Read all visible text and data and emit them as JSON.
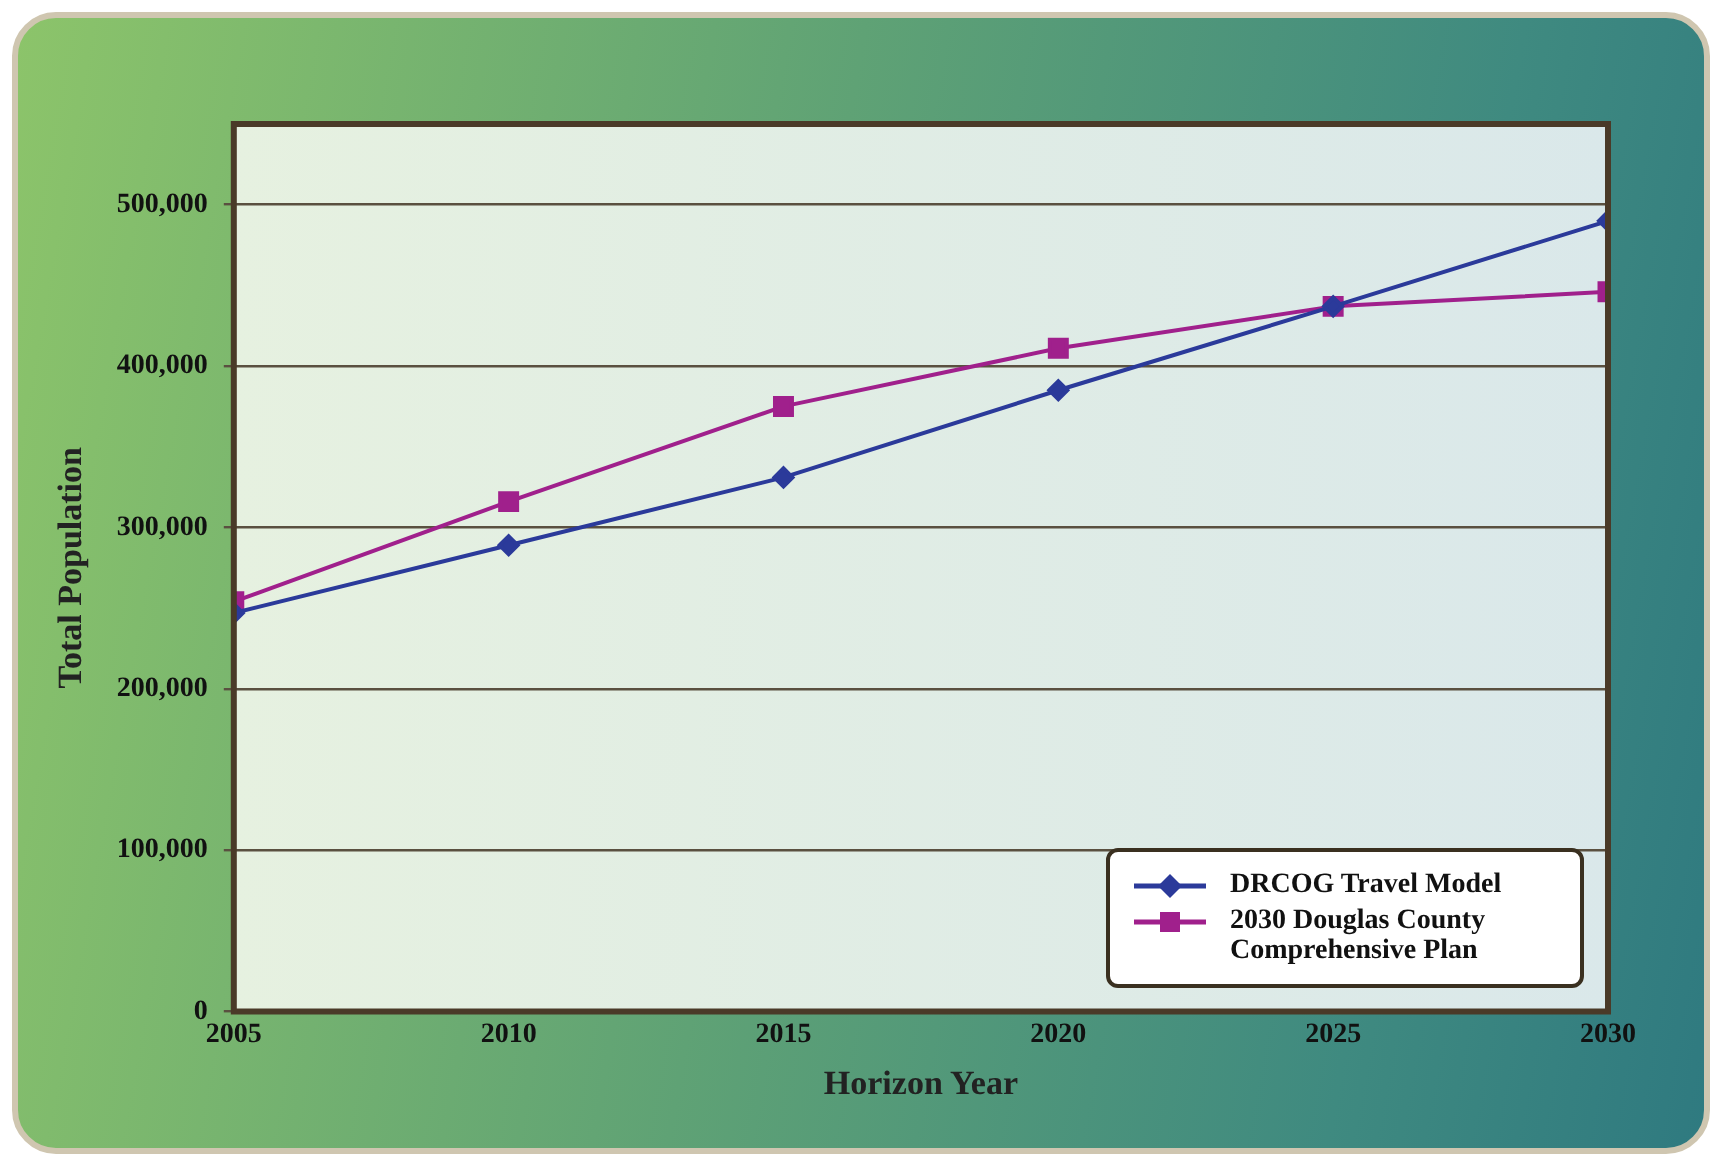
{
  "chart_data": {
    "type": "line",
    "xlabel": "Horizon Year",
    "ylabel": "Total Population",
    "x": [
      2005,
      2010,
      2015,
      2020,
      2025,
      2030
    ],
    "series": [
      {
        "name": "DRCOG Travel Model",
        "color": "#2b3a9a",
        "marker": "diamond",
        "values": [
          247000,
          289000,
          331000,
          385000,
          437000,
          490000
        ]
      },
      {
        "name": "2030 Douglas County Comprehensive Plan",
        "color": "#a0208c",
        "marker": "square",
        "values": [
          254000,
          316000,
          375000,
          411000,
          437000,
          446000
        ]
      }
    ],
    "xlim": [
      2005,
      2030
    ],
    "xticks": [
      2005,
      2010,
      2015,
      2020,
      2025,
      2030
    ],
    "ylim": [
      0,
      550000
    ],
    "yticks": [
      0,
      {
        "value": 100000,
        "label": "100,000"
      },
      {
        "value": 200000,
        "label": "200,000"
      },
      {
        "value": 300000,
        "label": "300,000"
      },
      {
        "value": 400000,
        "label": "400,000"
      },
      {
        "value": 500000,
        "label": "500,000"
      }
    ],
    "grid": "y",
    "legend": "bottom right"
  }
}
